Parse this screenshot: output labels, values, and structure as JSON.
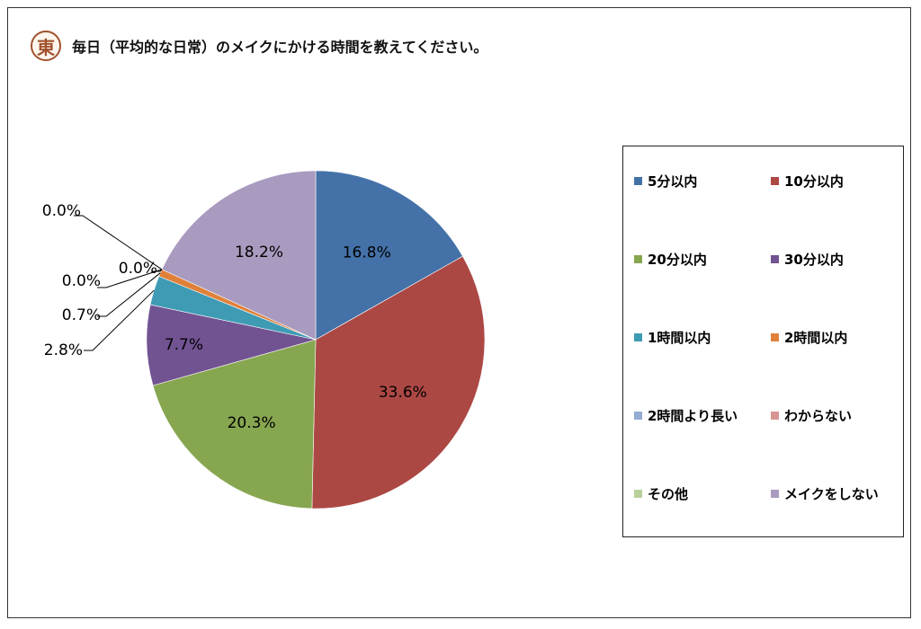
{
  "header": {
    "logo_text": "東",
    "title": "毎日（平均的な日常）のメイクにかける時間を教えてください。"
  },
  "chart_data": {
    "type": "pie",
    "title": "毎日（平均的な日常）のメイクにかける時間を教えてください。",
    "legend_position": "right",
    "slices": [
      {
        "label": "5分以内",
        "value": 16.8,
        "display": "16.8%",
        "color": "#4472a8"
      },
      {
        "label": "10分以内",
        "value": 33.6,
        "display": "33.6%",
        "color": "#ac4844"
      },
      {
        "label": "20分以内",
        "value": 20.3,
        "display": "20.3%",
        "color": "#87a650"
      },
      {
        "label": "30分以内",
        "value": 7.7,
        "display": "7.7%",
        "color": "#725392"
      },
      {
        "label": "1時間以内",
        "value": 2.8,
        "display": "2.8%",
        "color": "#3f9bb4"
      },
      {
        "label": "2時間以内",
        "value": 0.7,
        "display": "0.7%",
        "color": "#e0813a"
      },
      {
        "label": "2時間より長い",
        "value": 0.0,
        "display": "0.0%",
        "color": "#94acd4"
      },
      {
        "label": "わからない",
        "value": 0.0,
        "display": "0.0%",
        "color": "#d79593"
      },
      {
        "label": "その他",
        "value": 0.0,
        "display": "0.0%",
        "color": "#b8d09a"
      },
      {
        "label": "メイクをしない",
        "value": 18.2,
        "display": "18.2%",
        "color": "#a99bbf"
      }
    ]
  }
}
